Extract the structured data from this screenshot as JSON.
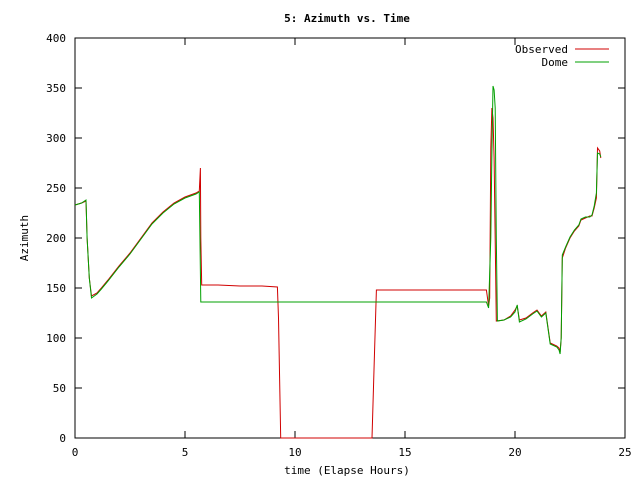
{
  "chart_data": {
    "type": "line",
    "title": "5: Azimuth vs. Time",
    "xlabel": "time (Elapse Hours)",
    "ylabel": "Azimuth",
    "xlim": [
      0,
      25
    ],
    "ylim": [
      0,
      400
    ],
    "xticks": [
      0,
      5,
      10,
      15,
      20,
      25
    ],
    "yticks": [
      0,
      50,
      100,
      150,
      200,
      250,
      300,
      350,
      400
    ],
    "grid": false,
    "legend_position": "top-right",
    "series": [
      {
        "name": "Observed",
        "color": "#d00000",
        "points": [
          [
            0,
            233
          ],
          [
            0.3,
            235
          ],
          [
            0.5,
            237
          ],
          [
            0.55,
            200
          ],
          [
            0.65,
            160
          ],
          [
            0.75,
            142
          ],
          [
            1.0,
            145
          ],
          [
            1.2,
            150
          ],
          [
            1.5,
            158
          ],
          [
            2.0,
            172
          ],
          [
            2.5,
            185
          ],
          [
            3.0,
            200
          ],
          [
            3.5,
            215
          ],
          [
            4.0,
            226
          ],
          [
            4.5,
            235
          ],
          [
            5.0,
            241
          ],
          [
            5.5,
            245
          ],
          [
            5.65,
            247
          ],
          [
            5.7,
            270
          ],
          [
            5.72,
            200
          ],
          [
            5.76,
            153
          ],
          [
            6.5,
            153
          ],
          [
            7.5,
            152
          ],
          [
            8.5,
            152
          ],
          [
            9.2,
            151
          ],
          [
            9.25,
            120
          ],
          [
            9.3,
            60
          ],
          [
            9.35,
            0
          ],
          [
            13.5,
            0
          ],
          [
            13.6,
            75
          ],
          [
            13.7,
            148
          ],
          [
            15.0,
            148
          ],
          [
            16.5,
            148
          ],
          [
            18.0,
            148
          ],
          [
            18.7,
            148
          ],
          [
            18.8,
            132
          ],
          [
            18.85,
            140
          ],
          [
            18.9,
            290
          ],
          [
            18.95,
            330
          ],
          [
            19.0,
            320
          ],
          [
            19.05,
            280
          ],
          [
            19.15,
            117
          ],
          [
            19.5,
            118
          ],
          [
            19.8,
            122
          ],
          [
            20.0,
            128
          ],
          [
            20.1,
            132
          ],
          [
            20.2,
            118
          ],
          [
            20.5,
            120
          ],
          [
            20.8,
            125
          ],
          [
            21.0,
            128
          ],
          [
            21.2,
            122
          ],
          [
            21.4,
            126
          ],
          [
            21.6,
            95
          ],
          [
            21.9,
            92
          ],
          [
            22.0,
            90
          ],
          [
            22.05,
            86
          ],
          [
            22.1,
            100
          ],
          [
            22.15,
            180
          ],
          [
            22.3,
            190
          ],
          [
            22.5,
            200
          ],
          [
            22.7,
            207
          ],
          [
            22.9,
            212
          ],
          [
            23.0,
            218
          ],
          [
            23.2,
            220
          ],
          [
            23.4,
            222
          ],
          [
            23.5,
            222
          ],
          [
            23.6,
            230
          ],
          [
            23.7,
            240
          ],
          [
            23.75,
            290
          ],
          [
            23.85,
            287
          ],
          [
            23.9,
            280
          ]
        ]
      },
      {
        "name": "Dome",
        "color": "#00a000",
        "points": [
          [
            0,
            233
          ],
          [
            0.3,
            235
          ],
          [
            0.5,
            238
          ],
          [
            0.55,
            200
          ],
          [
            0.65,
            160
          ],
          [
            0.75,
            140
          ],
          [
            1.0,
            144
          ],
          [
            1.2,
            149
          ],
          [
            1.5,
            157
          ],
          [
            2.0,
            171
          ],
          [
            2.5,
            184
          ],
          [
            3.0,
            199
          ],
          [
            3.5,
            214
          ],
          [
            4.0,
            225
          ],
          [
            4.5,
            234
          ],
          [
            5.0,
            240
          ],
          [
            5.5,
            244
          ],
          [
            5.65,
            246
          ],
          [
            5.72,
            136
          ],
          [
            9.0,
            136
          ],
          [
            13.0,
            136
          ],
          [
            16.0,
            136
          ],
          [
            18.7,
            136
          ],
          [
            18.8,
            130
          ],
          [
            18.9,
            200
          ],
          [
            18.95,
            285
          ],
          [
            19.0,
            352
          ],
          [
            19.05,
            348
          ],
          [
            19.1,
            330
          ],
          [
            19.15,
            200
          ],
          [
            19.2,
            117
          ],
          [
            19.5,
            118
          ],
          [
            19.8,
            121
          ],
          [
            20.0,
            126
          ],
          [
            20.1,
            133
          ],
          [
            20.2,
            116
          ],
          [
            20.5,
            119
          ],
          [
            20.8,
            124
          ],
          [
            21.0,
            127
          ],
          [
            21.2,
            121
          ],
          [
            21.4,
            125
          ],
          [
            21.6,
            94
          ],
          [
            21.9,
            91
          ],
          [
            22.0,
            88
          ],
          [
            22.05,
            84
          ],
          [
            22.1,
            100
          ],
          [
            22.15,
            183
          ],
          [
            22.3,
            191
          ],
          [
            22.5,
            201
          ],
          [
            22.7,
            208
          ],
          [
            22.9,
            213
          ],
          [
            23.0,
            219
          ],
          [
            23.2,
            221
          ],
          [
            23.4,
            221
          ],
          [
            23.5,
            223
          ],
          [
            23.6,
            232
          ],
          [
            23.7,
            245
          ],
          [
            23.75,
            285
          ],
          [
            23.85,
            284
          ],
          [
            23.9,
            281
          ]
        ]
      }
    ]
  }
}
